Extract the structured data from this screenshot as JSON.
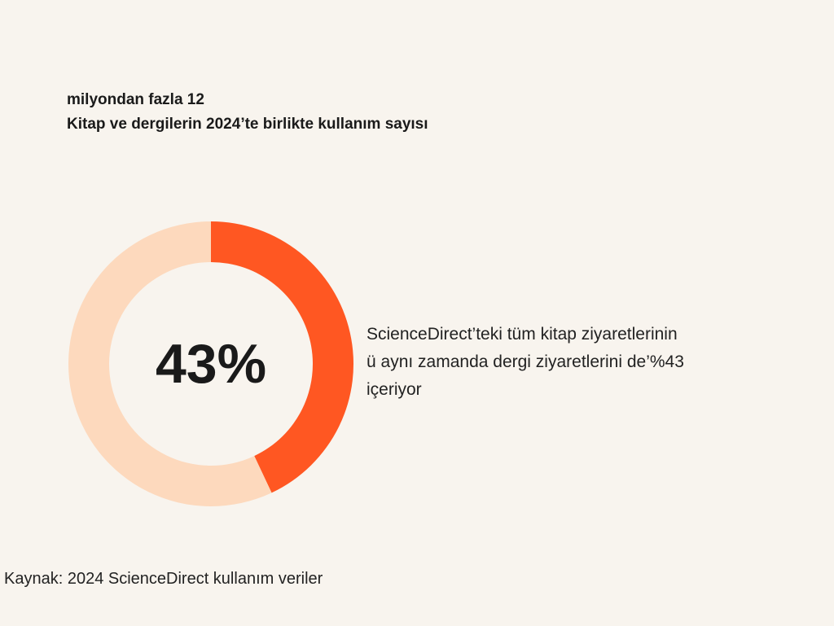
{
  "header": {
    "line1": "milyondan fazla 12",
    "line2": "Kitap ve dergilerin 2024’te birlikte kullanım sayısı"
  },
  "chart_data": {
    "type": "pie",
    "center_label": "43%",
    "slices": [
      {
        "label": "",
        "value": 43,
        "color": "#ff5722"
      },
      {
        "label": "",
        "value": 57,
        "color": "#fdd9bd"
      }
    ]
  },
  "description": {
    "line1": "ScienceDirect’teki tüm kitap ziyaretlerinin",
    "line2": "ü aynı zamanda dergi ziyaretlerini de’%43",
    "line3": "içeriyor"
  },
  "source": "Kaynak: 2024 ScienceDirect kullanım veriler"
}
